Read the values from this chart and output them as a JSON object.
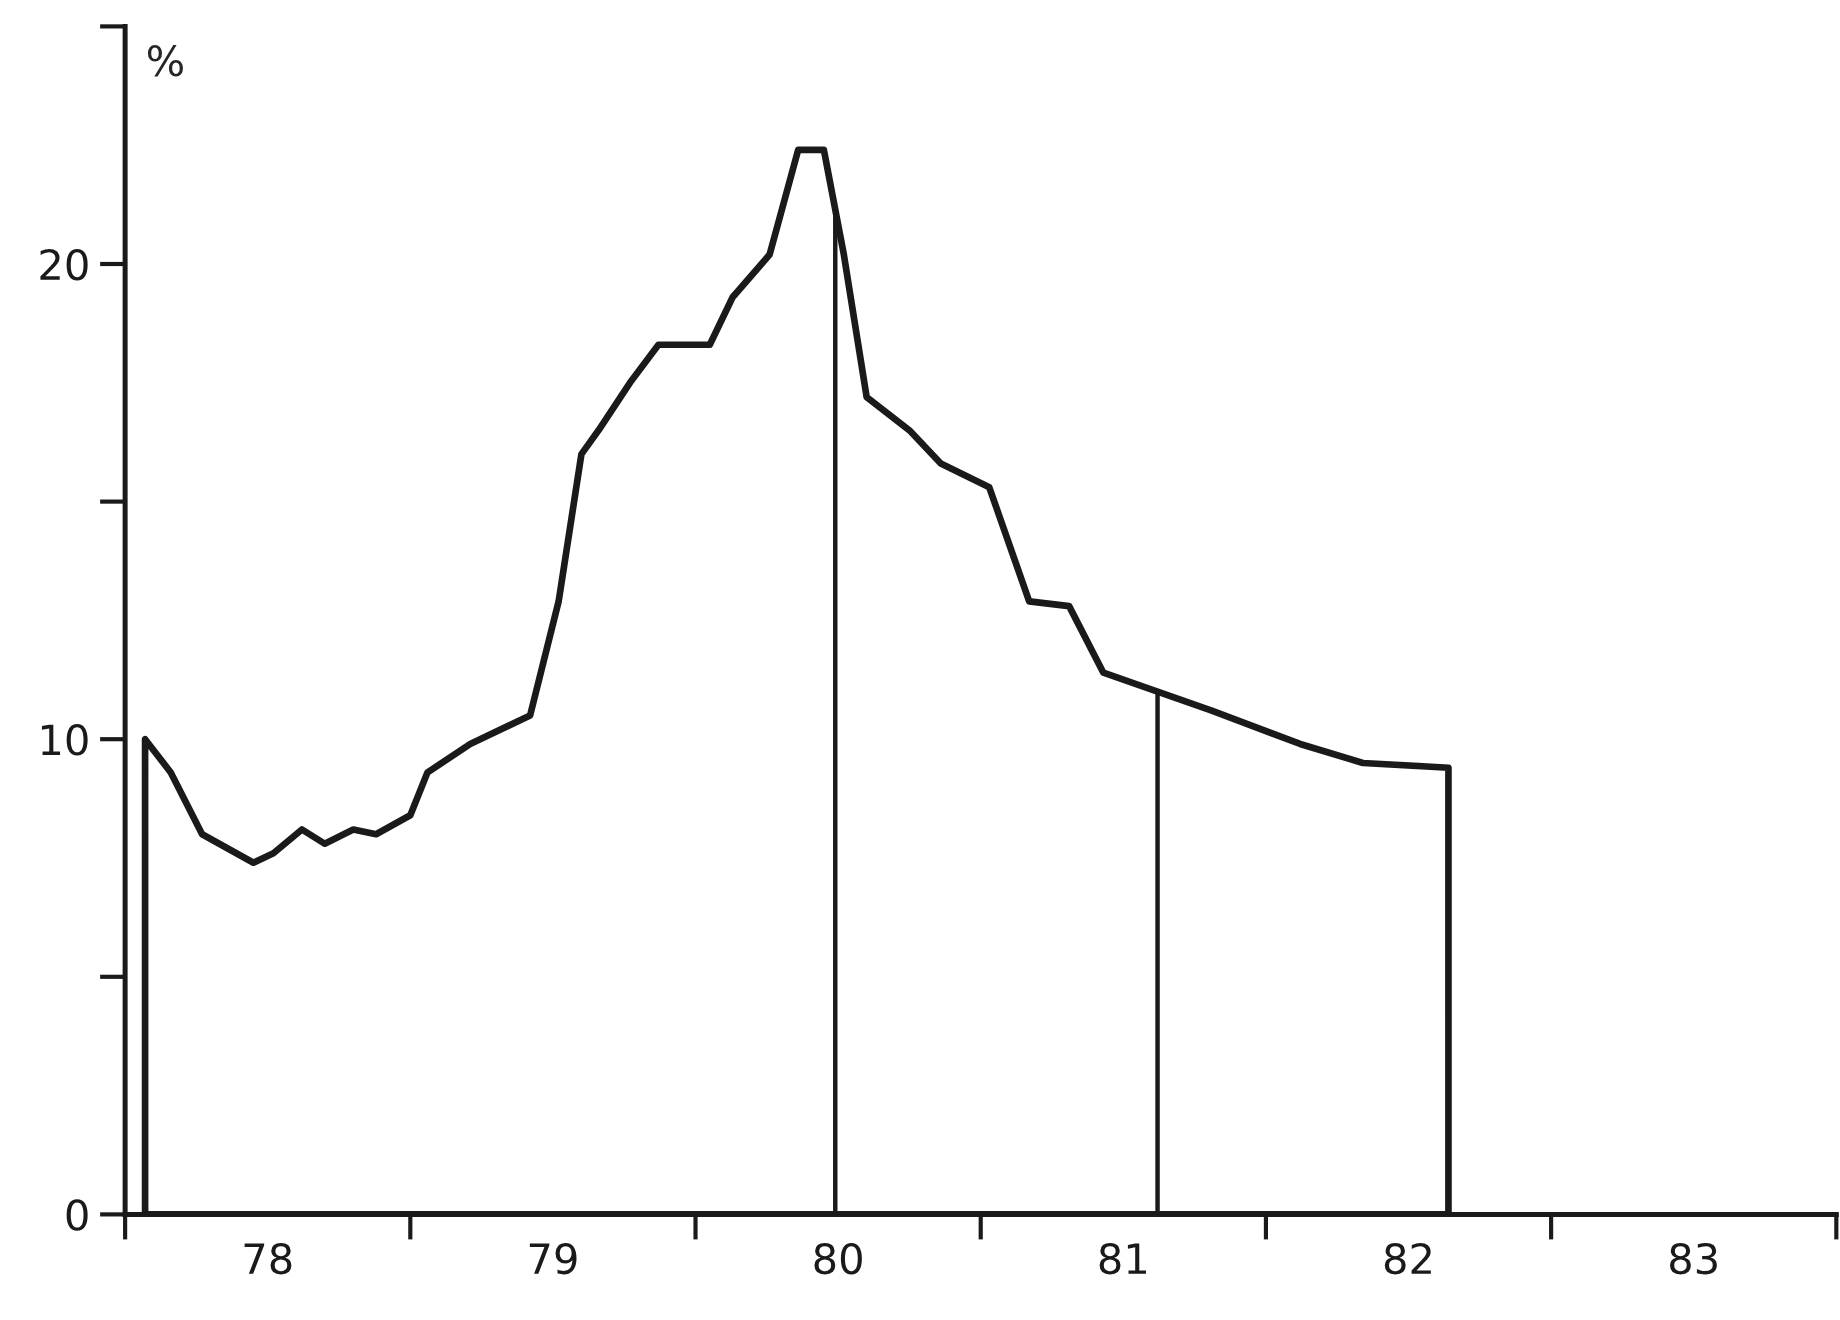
{
  "chart_data": {
    "type": "area",
    "ylabel": "%",
    "x": [
      78.07,
      78.16,
      78.27,
      78.45,
      78.52,
      78.62,
      78.7,
      78.8,
      78.88,
      79.0,
      79.06,
      79.21,
      79.42,
      79.52,
      79.6,
      79.66,
      79.77,
      79.87,
      80.05,
      80.13,
      80.26,
      80.36,
      80.45,
      80.52,
      80.6,
      80.75,
      80.86,
      81.03,
      81.17,
      81.31,
      81.43,
      81.62,
      81.81,
      82.12,
      82.34,
      82.64
    ],
    "series": [
      {
        "color": "#1a1a1a",
        "values": [
          10.0,
          9.3,
          8.0,
          7.4,
          7.6,
          8.1,
          7.8,
          8.1,
          8.0,
          8.4,
          9.3,
          9.9,
          10.5,
          12.9,
          16.0,
          16.5,
          17.5,
          18.3,
          18.3,
          19.3,
          20.2,
          22.4,
          22.4,
          20.2,
          17.2,
          16.5,
          15.8,
          15.3,
          12.9,
          12.8,
          11.4,
          11.0,
          10.6,
          9.9,
          9.5,
          9.4
        ]
      }
    ],
    "xlim": [
      78,
      84
    ],
    "xticks": [
      {
        "value": 78,
        "label": null
      },
      {
        "value": 78.5,
        "label": "78"
      },
      {
        "value": 79,
        "label": null
      },
      {
        "value": 79.5,
        "label": "79"
      },
      {
        "value": 80,
        "label": null
      },
      {
        "value": 80.5,
        "label": "80"
      },
      {
        "value": 81,
        "label": null
      },
      {
        "value": 81.5,
        "label": "81"
      },
      {
        "value": 82,
        "label": null
      },
      {
        "value": 82.5,
        "label": "82"
      },
      {
        "value": 83,
        "label": null
      },
      {
        "value": 83.5,
        "label": "83"
      },
      {
        "value": 84,
        "label": null
      }
    ],
    "ylim": [
      0,
      25
    ],
    "yticks": [
      0,
      {
        "value": 5,
        "label": null
      },
      10,
      {
        "value": 15,
        "label": null
      },
      20,
      {
        "value": 25,
        "label": null
      }
    ],
    "ref_lines": [
      {
        "axis": "x",
        "value": 80.49,
        "label": null
      },
      {
        "axis": "x",
        "value": 81.62,
        "label": null
      }
    ],
    "grid": false,
    "legend": false
  }
}
